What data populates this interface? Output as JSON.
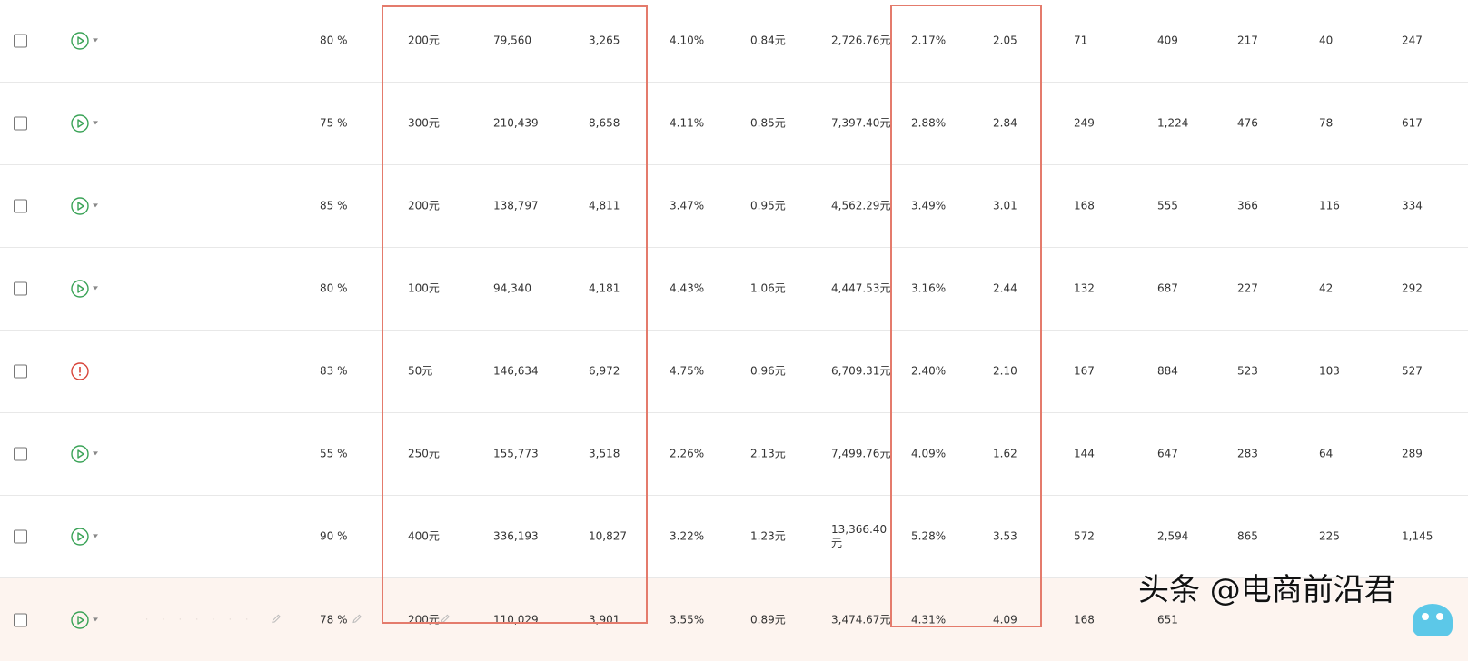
{
  "rows": [
    {
      "status": "play",
      "pct": "80 %",
      "budget": "200元",
      "impressions": "79,560",
      "clicks": "3,265",
      "ctr": "4.10%",
      "cpc": "0.84元",
      "cost": "2,726.76元",
      "cvr": "2.17%",
      "roi": "2.05",
      "c1": "71",
      "c2": "409",
      "c3": "217",
      "c4": "40",
      "c5": "247"
    },
    {
      "status": "play",
      "pct": "75 %",
      "budget": "300元",
      "impressions": "210,439",
      "clicks": "8,658",
      "ctr": "4.11%",
      "cpc": "0.85元",
      "cost": "7,397.40元",
      "cvr": "2.88%",
      "roi": "2.84",
      "c1": "249",
      "c2": "1,224",
      "c3": "476",
      "c4": "78",
      "c5": "617"
    },
    {
      "status": "play",
      "pct": "85 %",
      "budget": "200元",
      "impressions": "138,797",
      "clicks": "4,811",
      "ctr": "3.47%",
      "cpc": "0.95元",
      "cost": "4,562.29元",
      "cvr": "3.49%",
      "roi": "3.01",
      "c1": "168",
      "c2": "555",
      "c3": "366",
      "c4": "116",
      "c5": "334"
    },
    {
      "status": "play",
      "pct": "80 %",
      "budget": "100元",
      "impressions": "94,340",
      "clicks": "4,181",
      "ctr": "4.43%",
      "cpc": "1.06元",
      "cost": "4,447.53元",
      "cvr": "3.16%",
      "roi": "2.44",
      "c1": "132",
      "c2": "687",
      "c3": "227",
      "c4": "42",
      "c5": "292"
    },
    {
      "status": "warning",
      "pct": "83 %",
      "budget": "50元",
      "impressions": "146,634",
      "clicks": "6,972",
      "ctr": "4.75%",
      "cpc": "0.96元",
      "cost": "6,709.31元",
      "cvr": "2.40%",
      "roi": "2.10",
      "c1": "167",
      "c2": "884",
      "c3": "523",
      "c4": "103",
      "c5": "527"
    },
    {
      "status": "play",
      "pct": "55 %",
      "budget": "250元",
      "impressions": "155,773",
      "clicks": "3,518",
      "ctr": "2.26%",
      "cpc": "2.13元",
      "cost": "7,499.76元",
      "cvr": "4.09%",
      "roi": "1.62",
      "c1": "144",
      "c2": "647",
      "c3": "283",
      "c4": "64",
      "c5": "289"
    },
    {
      "status": "play",
      "pct": "90 %",
      "budget": "400元",
      "impressions": "336,193",
      "clicks": "10,827",
      "ctr": "3.22%",
      "cpc": "1.23元",
      "cost": "13,366.40元",
      "cvr": "5.28%",
      "roi": "3.53",
      "c1": "572",
      "c2": "2,594",
      "c3": "865",
      "c4": "225",
      "c5": "1,145"
    },
    {
      "status": "play",
      "pct": "78 %",
      "budget": "200元",
      "impressions": "110,029",
      "clicks": "3,901",
      "ctr": "3.55%",
      "cpc": "0.89元",
      "cost": "3,474.67元",
      "cvr": "4.31%",
      "roi": "4.09",
      "c1": "168",
      "c2": "651",
      "c3": "",
      "c4": "",
      "c5": ""
    }
  ],
  "watermark": "头条 @电商前沿君",
  "colors": {
    "accent_green": "#3aa357",
    "warning_red": "#d8453a",
    "highlight_box": "#e47b6c",
    "highlight_row": "#fdf4ef"
  },
  "icons": {
    "play": "play-circle-icon",
    "warning": "warning-circle-icon",
    "edit": "pencil-icon",
    "dropdown": "caret-down-icon"
  }
}
